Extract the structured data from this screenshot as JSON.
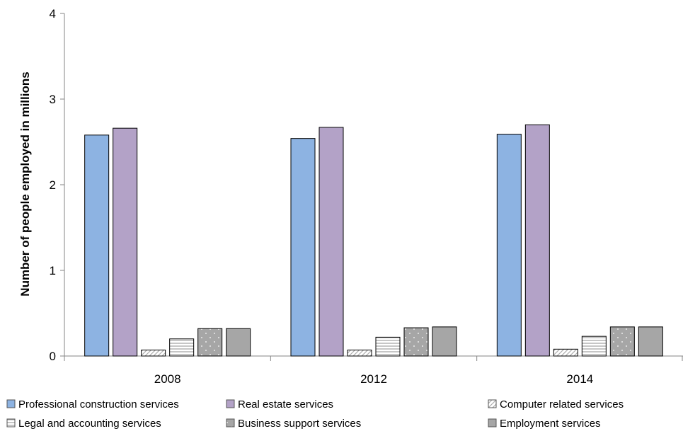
{
  "chart_data": {
    "type": "bar",
    "title": "",
    "xlabel": "",
    "ylabel": "Number of people employed in millions",
    "categories": [
      "2008",
      "2012",
      "2014"
    ],
    "ylim": [
      0,
      4
    ],
    "yticks": [
      "0",
      "1",
      "2",
      "3",
      "4"
    ],
    "grid": false,
    "legend_position": "bottom",
    "series": [
      {
        "name": "Professional construction services",
        "values": [
          2.58,
          2.54,
          2.59
        ],
        "color": "#8db3e2",
        "pattern": "solid"
      },
      {
        "name": "Real estate services",
        "values": [
          2.66,
          2.67,
          2.7
        ],
        "color": "#b3a2c7",
        "pattern": "solid"
      },
      {
        "name": "Computer related services",
        "values": [
          0.07,
          0.07,
          0.08
        ],
        "color": "#ffffff",
        "pattern": "diagonal"
      },
      {
        "name": "Legal and accounting services",
        "values": [
          0.2,
          0.22,
          0.23
        ],
        "color": "#ffffff",
        "pattern": "horizontal"
      },
      {
        "name": "Business support services",
        "values": [
          0.32,
          0.33,
          0.34
        ],
        "color": "#a6a6a6",
        "pattern": "dots"
      },
      {
        "name": "Employment services",
        "values": [
          0.32,
          0.34,
          0.34
        ],
        "color": "#a6a6a6",
        "pattern": "solid"
      }
    ]
  }
}
